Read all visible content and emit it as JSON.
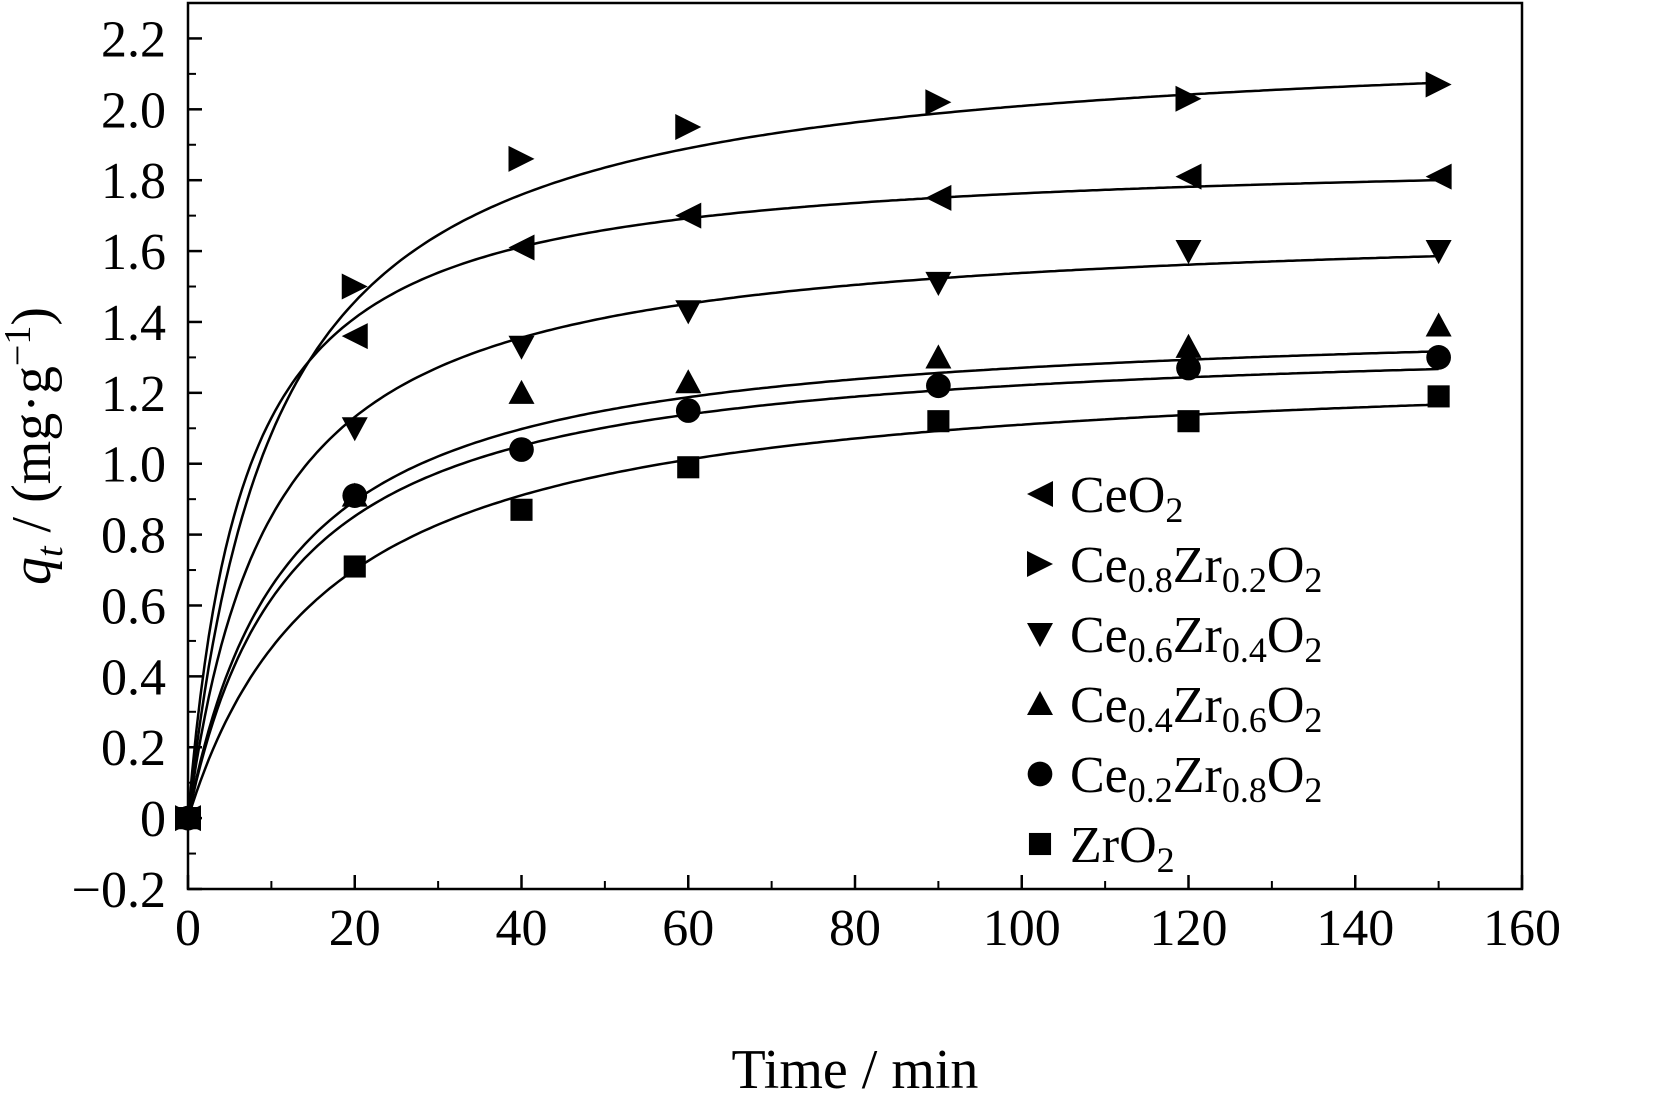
{
  "chart_data": {
    "type": "scatter",
    "xlabel": "Time / min",
    "ylabel": {
      "symbol": "q",
      "subscript": "t",
      "unit_prefix": " / (mg·g",
      "unit_exponent": "−1",
      "unit_suffix": ")"
    },
    "xlim": [
      0,
      160
    ],
    "ylim": [
      -0.2,
      2.3
    ],
    "x_ticks": [
      0,
      20,
      40,
      60,
      80,
      100,
      120,
      140,
      160
    ],
    "x_tick_labels": [
      "0",
      "20",
      "40",
      "60",
      "80",
      "100",
      "120",
      "140",
      "160"
    ],
    "x_minor_step": 10,
    "y_ticks": [
      -0.2,
      0,
      0.2,
      0.4,
      0.6,
      0.8,
      1.0,
      1.2,
      1.4,
      1.6,
      1.8,
      2.0,
      2.2
    ],
    "y_tick_labels": [
      "−0.2",
      "0",
      "0.2",
      "0.4",
      "0.6",
      "0.8",
      "1.0",
      "1.2",
      "1.4",
      "1.6",
      "1.8",
      "2.0",
      "2.2"
    ],
    "y_minor_step": 0.1,
    "grid": false,
    "legend_position": "bottom-right",
    "fit_curves": true,
    "series": [
      {
        "name": "CeO2",
        "label_parts": [
          {
            "t": "CeO"
          },
          {
            "t": "2",
            "sub": true
          }
        ],
        "marker": "triangle-left",
        "x": [
          0,
          20,
          40,
          60,
          90,
          120,
          150
        ],
        "y": [
          0,
          1.36,
          1.61,
          1.7,
          1.75,
          1.81,
          1.81
        ],
        "fit": {
          "qe": 1.88,
          "k": 0.08
        }
      },
      {
        "name": "Ce0.8Zr0.2O2",
        "label_parts": [
          {
            "t": "Ce"
          },
          {
            "t": "0.8",
            "sub": true
          },
          {
            "t": "Zr"
          },
          {
            "t": "0.2",
            "sub": true
          },
          {
            "t": "O"
          },
          {
            "t": "2",
            "sub": true
          }
        ],
        "marker": "triangle-right",
        "x": [
          0,
          20,
          40,
          60,
          90,
          120,
          150
        ],
        "y": [
          0,
          1.5,
          1.86,
          1.95,
          2.02,
          2.03,
          2.07
        ],
        "fit": {
          "qe": 2.22,
          "k": 0.043
        }
      },
      {
        "name": "Ce0.6Zr0.4O2",
        "label_parts": [
          {
            "t": "Ce"
          },
          {
            "t": "0.6",
            "sub": true
          },
          {
            "t": "Zr"
          },
          {
            "t": "0.4",
            "sub": true
          },
          {
            "t": "O"
          },
          {
            "t": "2",
            "sub": true
          }
        ],
        "marker": "triangle-down",
        "x": [
          0,
          20,
          40,
          60,
          90,
          120,
          150
        ],
        "y": [
          0,
          1.1,
          1.33,
          1.43,
          1.51,
          1.6,
          1.6
        ],
        "fit": {
          "qe": 1.69,
          "k": 0.06
        }
      },
      {
        "name": "Ce0.4Zr0.6O2",
        "label_parts": [
          {
            "t": "Ce"
          },
          {
            "t": "0.4",
            "sub": true
          },
          {
            "t": "Zr"
          },
          {
            "t": "0.6",
            "sub": true
          },
          {
            "t": "O"
          },
          {
            "t": "2",
            "sub": true
          }
        ],
        "marker": "triangle-up",
        "x": [
          0,
          20,
          40,
          60,
          90,
          120,
          150
        ],
        "y": [
          0,
          0.91,
          1.2,
          1.23,
          1.3,
          1.33,
          1.39
        ],
        "fit": {
          "qe": 1.42,
          "k": 0.06
        }
      },
      {
        "name": "Ce0.2Zr0.8O2",
        "label_parts": [
          {
            "t": "Ce"
          },
          {
            "t": "0.2",
            "sub": true
          },
          {
            "t": "Zr"
          },
          {
            "t": "0.8",
            "sub": true
          },
          {
            "t": "O"
          },
          {
            "t": "2",
            "sub": true
          }
        ],
        "marker": "circle",
        "x": [
          0,
          20,
          40,
          60,
          90,
          120,
          150
        ],
        "y": [
          0,
          0.91,
          1.04,
          1.15,
          1.22,
          1.27,
          1.3
        ],
        "fit": {
          "qe": 1.37,
          "k": 0.06
        }
      },
      {
        "name": "ZrO2",
        "label_parts": [
          {
            "t": "ZrO"
          },
          {
            "t": "2",
            "sub": true
          }
        ],
        "marker": "square",
        "x": [
          0,
          20,
          40,
          60,
          90,
          120,
          150
        ],
        "y": [
          0,
          0.71,
          0.87,
          0.99,
          1.12,
          1.12,
          1.19
        ],
        "fit": {
          "qe": 1.3,
          "k": 0.045
        }
      }
    ]
  }
}
